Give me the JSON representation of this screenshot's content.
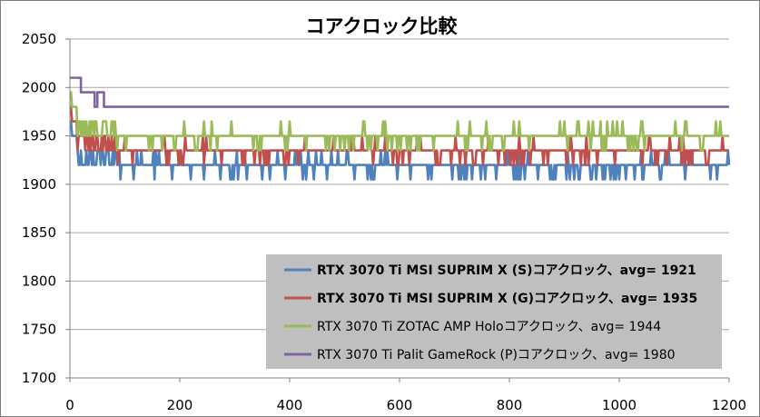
{
  "chart_data": {
    "type": "line",
    "title": "コアクロック比較",
    "xlabel": "",
    "ylabel": "",
    "xlim": [
      0,
      1200
    ],
    "ylim": [
      1700,
      2050
    ],
    "x_ticks": [
      "0",
      "200",
      "400",
      "600",
      "800",
      "1000",
      "1200"
    ],
    "y_ticks": [
      "2050",
      "2000",
      "1950",
      "1900",
      "1850",
      "1800",
      "1750",
      "1700"
    ],
    "grid": true,
    "legend_position": "bottom-right",
    "series": [
      {
        "name": "RTX 3070 Ti MSI SUPRIM X (S)コアクロック、avg= 1921",
        "color": "#4f81bd",
        "bold": true,
        "initial_spike": 1965,
        "warmup_level": 1935,
        "steady_level": 1920,
        "high_level": 1935,
        "low_level": 1905,
        "avg": 1921
      },
      {
        "name": "RTX 3070 Ti MSI SUPRIM X (G)コアクロック、avg= 1935",
        "color": "#c0504d",
        "bold": true,
        "initial_spike": 1980,
        "warmup_level": 1950,
        "steady_level": 1935,
        "high_level": 1950,
        "low_level": 1920,
        "avg": 1935
      },
      {
        "name": "RTX 3070 Ti ZOTAC AMP Holoコアクロック、avg= 1944",
        "color": "#9bbb59",
        "bold": false,
        "initial_spike": 1995,
        "warmup_level": 1965,
        "steady_level": 1950,
        "high_level": 1965,
        "low_level": 1935,
        "avg": 1944
      },
      {
        "name": "RTX 3070 Ti Palit GameRock (P)コアクロック、avg= 1980",
        "color": "#8064a2",
        "bold": false,
        "points": [
          [
            0,
            2010
          ],
          [
            20,
            2010
          ],
          [
            20,
            1995
          ],
          [
            45,
            1995
          ],
          [
            45,
            1980
          ],
          [
            50,
            1980
          ],
          [
            50,
            1995
          ],
          [
            62,
            1995
          ],
          [
            62,
            1980
          ],
          [
            1200,
            1980
          ]
        ],
        "avg": 1980
      }
    ]
  }
}
